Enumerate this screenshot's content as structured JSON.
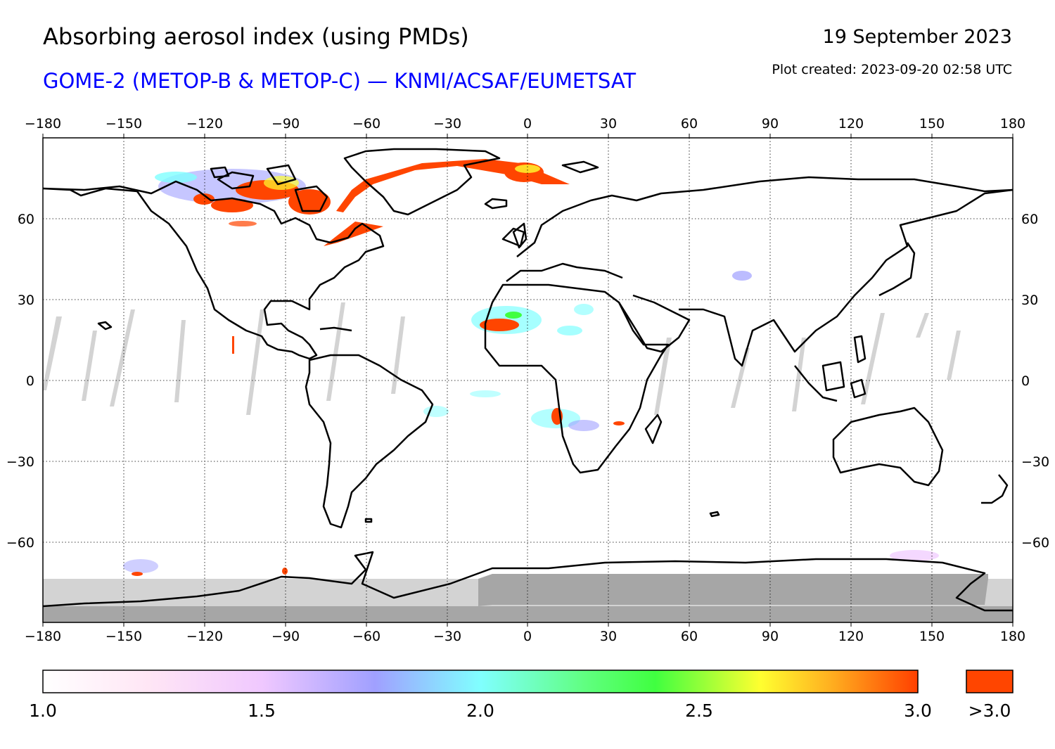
{
  "header": {
    "title": "Absorbing aerosol index (using PMDs)",
    "subtitle": "GOME-2 (METOP-B & METOP-C) — KNMI/ACSAF/EUMETSAT",
    "date": "19 September 2023",
    "plot_created": "Plot created: 2023-09-20 02:58 UTC"
  },
  "colors": {
    "title": "#000000",
    "subtitle": "#0000ff",
    "coastline": "#000000",
    "gridline": "#000000",
    "no_data_gray": "#d3d3d3",
    "polar_night": "#a6a6a6",
    "over_max": "#ff4500",
    "scale": [
      "#ffffff",
      "#ffd6f0",
      "#f0c8ff",
      "#a0a0ff",
      "#80ffff",
      "#40ff40",
      "#ffff30",
      "#ff4000"
    ]
  },
  "map": {
    "projection": "equirectangular",
    "lon_ticks": [
      "−180",
      "−150",
      "−120",
      "−90",
      "−60",
      "−30",
      "0",
      "30",
      "60",
      "90",
      "120",
      "150",
      "180"
    ],
    "lat_ticks": [
      "60",
      "30",
      "0",
      "−30",
      "−60"
    ],
    "lon_range": [
      -180,
      180
    ],
    "lat_range": [
      -90,
      90
    ],
    "grid": "dotted",
    "plumes": [
      {
        "name": "canadian-wildfire-smoke",
        "lon": -100,
        "lat": 71,
        "class": ">3.0"
      },
      {
        "name": "greenland-sea-smoke-band",
        "lon": -5,
        "lat": 78,
        "class": ">3.0"
      },
      {
        "name": "labrador-smoke-band",
        "lon": -65,
        "lat": 60,
        "class": ">3.0"
      },
      {
        "name": "sahara-dust",
        "lon": -10,
        "lat": 21,
        "class": ">3.0"
      },
      {
        "name": "south-africa-biomass-burning",
        "lon": 12,
        "lat": -14,
        "class": "2.5-3.0"
      }
    ]
  },
  "colorbar": {
    "labels": [
      "1.0",
      "1.5",
      "2.0",
      "2.5",
      "3.0"
    ],
    "range": [
      1.0,
      3.0
    ],
    "overflow_label": ">3.0"
  }
}
